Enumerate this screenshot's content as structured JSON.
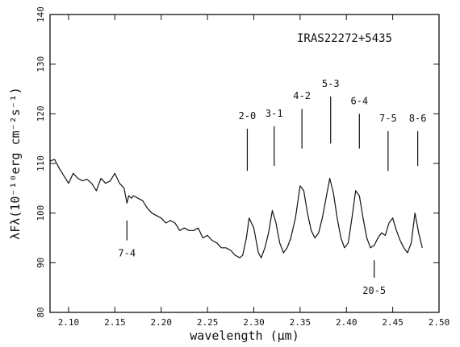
{
  "chart_data": {
    "type": "line",
    "title": "",
    "object_label": "IRAS22272+5435",
    "xlabel": "wavelength (μm)",
    "ylabel": "λFλ(10⁻¹⁰erg cm⁻²s⁻¹)",
    "xlim": [
      2.08,
      2.5
    ],
    "ylim": [
      80,
      140
    ],
    "x_ticks": [
      "2.10",
      "2.15",
      "2.20",
      "2.25",
      "2.30",
      "2.35",
      "2.40",
      "2.45",
      "2.50"
    ],
    "y_ticks": [
      "80",
      "90",
      "100",
      "110",
      "120",
      "130",
      "140"
    ],
    "grid": false,
    "series": [
      {
        "x": [
          2.08,
          2.085,
          2.09,
          2.095,
          2.1,
          2.105,
          2.11,
          2.115,
          2.12,
          2.125,
          2.13,
          2.135,
          2.14,
          2.145,
          2.15,
          2.155,
          2.16,
          2.163,
          2.165,
          2.168,
          2.17,
          2.175,
          2.18,
          2.185,
          2.19,
          2.195,
          2.2,
          2.205,
          2.21,
          2.215,
          2.22,
          2.225,
          2.23,
          2.235,
          2.24,
          2.245,
          2.25,
          2.255,
          2.26,
          2.265,
          2.27,
          2.275,
          2.28,
          2.285,
          2.288,
          2.292,
          2.295,
          2.3,
          2.305,
          2.308,
          2.312,
          2.316,
          2.32,
          2.324,
          2.328,
          2.332,
          2.336,
          2.34,
          2.345,
          2.35,
          2.354,
          2.358,
          2.362,
          2.366,
          2.37,
          2.374,
          2.378,
          2.382,
          2.386,
          2.39,
          2.394,
          2.398,
          2.402,
          2.406,
          2.41,
          2.414,
          2.418,
          2.422,
          2.426,
          2.43,
          2.434,
          2.438,
          2.442,
          2.446,
          2.45,
          2.454,
          2.458,
          2.462,
          2.466,
          2.47,
          2.474,
          2.478,
          2.482
        ],
        "y": [
          110.5,
          110.8,
          109.0,
          107.5,
          106.0,
          108.0,
          107.0,
          106.5,
          106.8,
          106.0,
          104.5,
          107.0,
          106.0,
          106.5,
          108.0,
          106.0,
          105.0,
          102.0,
          103.5,
          103.0,
          103.5,
          103.0,
          102.5,
          101.0,
          100.0,
          99.5,
          99.0,
          98.0,
          98.5,
          98.0,
          96.5,
          97.0,
          96.5,
          96.5,
          97.0,
          95.0,
          95.5,
          94.5,
          94.0,
          93.0,
          93.0,
          92.5,
          91.5,
          91.0,
          91.5,
          95.0,
          99.0,
          97.0,
          92.0,
          91.0,
          93.0,
          96.0,
          100.5,
          98.0,
          94.0,
          92.0,
          93.0,
          95.0,
          99.0,
          105.5,
          104.5,
          100.0,
          96.5,
          95.0,
          96.0,
          99.0,
          103.0,
          107.0,
          104.0,
          99.0,
          95.0,
          93.0,
          94.0,
          99.0,
          104.5,
          103.5,
          99.0,
          95.0,
          93.0,
          93.5,
          95.0,
          96.0,
          95.5,
          98.0,
          99.0,
          96.5,
          94.5,
          93.0,
          92.0,
          94.0,
          100.0,
          96.0,
          93.0
        ]
      }
    ],
    "line_markers": [
      {
        "label": "2-0",
        "x": 2.293,
        "y_from": 108.5,
        "y_to": 117.0,
        "label_pos": "above"
      },
      {
        "label": "3-1",
        "x": 2.322,
        "y_from": 109.5,
        "y_to": 117.5,
        "label_pos": "above"
      },
      {
        "label": "4-2",
        "x": 2.352,
        "y_from": 113.0,
        "y_to": 121.0,
        "label_pos": "above"
      },
      {
        "label": "5-3",
        "x": 2.383,
        "y_from": 114.0,
        "y_to": 123.5,
        "label_pos": "above"
      },
      {
        "label": "6-4",
        "x": 2.414,
        "y_from": 113.0,
        "y_to": 120.0,
        "label_pos": "above"
      },
      {
        "label": "7-5",
        "x": 2.445,
        "y_from": 108.5,
        "y_to": 116.5,
        "label_pos": "above"
      },
      {
        "label": "8-6",
        "x": 2.477,
        "y_from": 109.5,
        "y_to": 116.5,
        "label_pos": "above"
      },
      {
        "label": "7-4",
        "x": 2.163,
        "y_from": 94.5,
        "y_to": 98.5,
        "label_pos": "below"
      },
      {
        "label": "20-5",
        "x": 2.43,
        "y_from": 87.0,
        "y_to": 90.5,
        "label_pos": "below"
      }
    ]
  }
}
